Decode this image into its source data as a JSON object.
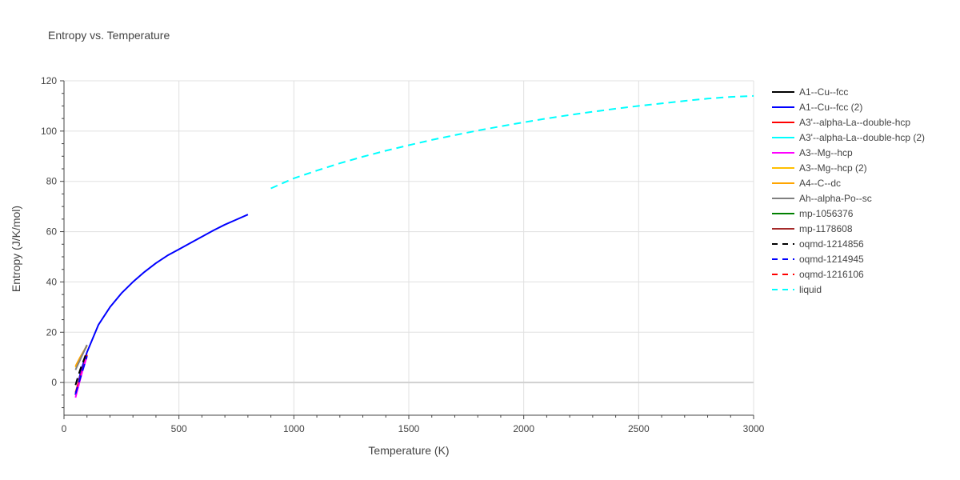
{
  "chart_data": {
    "type": "line",
    "title": "Entropy vs. Temperature",
    "xlabel": "Temperature (K)",
    "ylabel": "Entropy (J/K/mol)",
    "xlim": [
      0,
      3000
    ],
    "ylim": [
      -13,
      120
    ],
    "x_ticks": [
      0,
      500,
      1000,
      1500,
      2000,
      2500,
      3000
    ],
    "y_ticks": [
      0,
      20,
      40,
      60,
      80,
      100,
      120
    ],
    "grid": true,
    "legend_position": "right",
    "series": [
      {
        "name": "A1--Cu--fcc",
        "color": "#000000",
        "dash": "solid",
        "x": [
          50,
          60,
          70,
          80,
          90,
          100
        ],
        "y": [
          -5,
          -2,
          2,
          5,
          8,
          11
        ]
      },
      {
        "name": "A1--Cu--fcc (2)",
        "color": "#0000ff",
        "dash": "solid",
        "x": [
          50,
          75,
          100,
          150,
          200,
          250,
          300,
          350,
          400,
          450,
          500,
          550,
          600,
          650,
          700,
          750,
          800
        ],
        "y": [
          -5,
          5,
          12,
          23,
          30,
          35.5,
          40,
          44,
          47.5,
          50.5,
          53,
          55.5,
          58,
          60.5,
          62.8,
          64.8,
          66.8
        ]
      },
      {
        "name": "A3'--alpha-La--double-hcp",
        "color": "#ff0000",
        "dash": "solid",
        "x": [
          50,
          60,
          70,
          80,
          90,
          100
        ],
        "y": [
          -4,
          -1,
          2,
          5,
          8,
          11
        ]
      },
      {
        "name": "A3'--alpha-La--double-hcp (2)",
        "color": "#00ffff",
        "dash": "solid",
        "x": [],
        "y": []
      },
      {
        "name": "A3--Mg--hcp",
        "color": "#ff00ff",
        "dash": "solid",
        "x": [
          50,
          60,
          70,
          80,
          90,
          100
        ],
        "y": [
          -6,
          -2.5,
          1,
          4.5,
          7.5,
          10.5
        ]
      },
      {
        "name": "A3--Mg--hcp (2)",
        "color": "#ffbf00",
        "dash": "solid",
        "x": [
          50,
          60,
          70,
          80,
          90,
          100
        ],
        "y": [
          6,
          7.8,
          9.6,
          11.3,
          13,
          14.5
        ]
      },
      {
        "name": "A4--C--dc",
        "color": "#ffa500",
        "dash": "solid",
        "x": [
          50,
          60,
          70,
          80,
          90,
          100
        ],
        "y": [
          6.5,
          8.2,
          10,
          11.6,
          13.2,
          14.8
        ]
      },
      {
        "name": "Ah--alpha-Po--sc",
        "color": "#808080",
        "dash": "solid",
        "x": [
          50,
          60,
          70,
          80,
          90,
          100
        ],
        "y": [
          5,
          7,
          9,
          11,
          13,
          15
        ]
      },
      {
        "name": "mp-1056376",
        "color": "#008000",
        "dash": "solid",
        "x": [],
        "y": []
      },
      {
        "name": "mp-1178608",
        "color": "#a52a2a",
        "dash": "solid",
        "x": [],
        "y": []
      },
      {
        "name": "oqmd-1214856",
        "color": "#000000",
        "dash": "dash",
        "x": [
          50,
          60,
          70,
          80,
          90,
          100
        ],
        "y": [
          -1,
          2,
          5,
          7.5,
          10,
          12.5
        ]
      },
      {
        "name": "oqmd-1214945",
        "color": "#0000ff",
        "dash": "dash",
        "x": [
          50,
          60,
          70,
          80,
          90,
          100
        ],
        "y": [
          -4.5,
          -1.5,
          1.5,
          4.5,
          7.5,
          10.5
        ]
      },
      {
        "name": "oqmd-1216106",
        "color": "#ff0000",
        "dash": "dash",
        "x": [],
        "y": []
      },
      {
        "name": "liquid",
        "color": "#00ffff",
        "dash": "dash",
        "x": [
          900,
          1000,
          1100,
          1200,
          1300,
          1400,
          1500,
          1600,
          1700,
          1800,
          1900,
          2000,
          2100,
          2200,
          2300,
          2400,
          2500,
          2600,
          2700,
          2800,
          2900,
          3000
        ],
        "y": [
          77.2,
          81.2,
          84.3,
          87.2,
          89.8,
          92.2,
          94.4,
          96.5,
          98.4,
          100.2,
          101.9,
          103.5,
          105.0,
          106.4,
          107.7,
          108.9,
          110.0,
          111.0,
          112.0,
          112.9,
          113.6,
          114.0
        ]
      }
    ]
  }
}
